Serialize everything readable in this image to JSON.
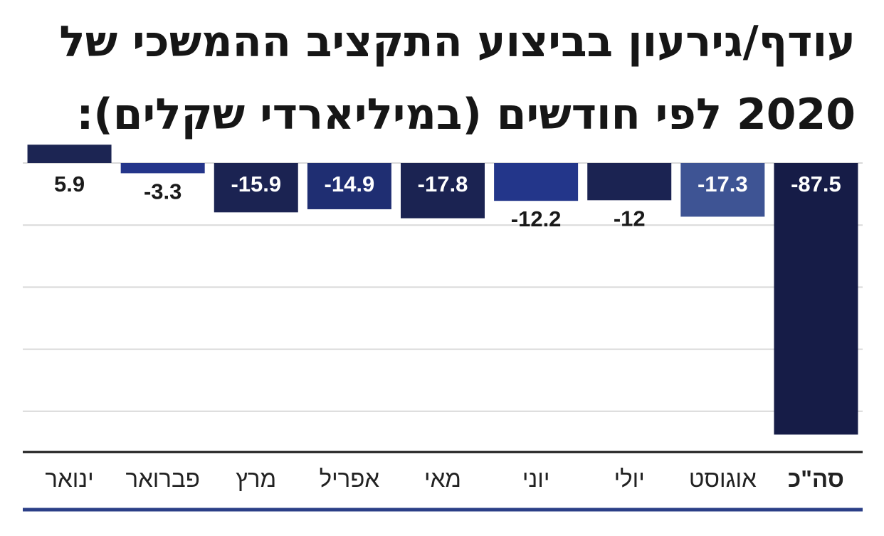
{
  "chart_data": {
    "type": "bar",
    "title": "עודף/גירעון בביצוע התקציב ההמשכי של 2020 לפי חודשים (במיליארדי שקלים):",
    "categories": [
      "ינואר",
      "פברואר",
      "מרץ",
      "אפריל",
      "מאי",
      "יוני",
      "יולי",
      "אוגוסט",
      "סה\"כ"
    ],
    "values": [
      5.9,
      -3.3,
      -15.9,
      -14.9,
      -17.8,
      -12.2,
      -12,
      -17.3,
      -87.5
    ],
    "value_labels": [
      "5.9",
      "-3.3",
      "-15.9",
      "-14.9",
      "-17.8",
      "-12.2",
      "-12",
      "-17.3",
      "-87.5"
    ],
    "bar_colors": [
      "#1c2553",
      "#24358a",
      "#1b2352",
      "#1f2e72",
      "#1b2352",
      "#23368a",
      "#1b2352",
      "#3e5494",
      "#161c47"
    ],
    "ylim": [
      -87.5,
      5.9
    ],
    "grid": true,
    "xlabel": "",
    "ylabel": "",
    "label_colors": {
      "dark": "#1a1a1a",
      "light": "#ffffff"
    },
    "axis_color": "#1a1a1a",
    "grid_color": "#d9d9d9",
    "bottom_rule_color": "#2b3f87"
  }
}
